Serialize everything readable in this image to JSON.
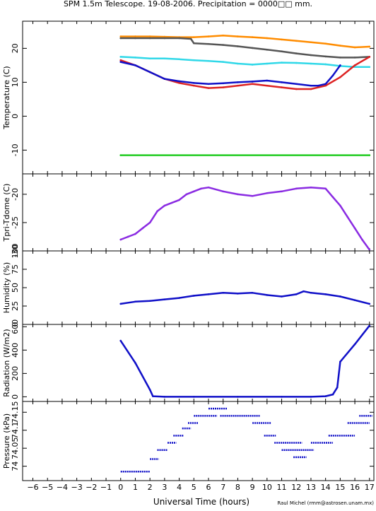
{
  "title": "SPM 1.5m Telescope. 19-08-2006. Precipitation = 0000□□ mm.",
  "credit": "Raul Michel (rmm@astrosen.unam.mx)",
  "xlabel": "Universal Time (hours)",
  "colors": {
    "orange": "#ff8c00",
    "dark_gray": "#555555",
    "cyan": "#30d8e8",
    "red": "#dd2222",
    "blue": "#1010c8",
    "green": "#22cc22",
    "purple": "#8a2be2"
  },
  "chart_data": [
    {
      "type": "scatter",
      "name": "temperature",
      "ylabel": "Temperature (C)",
      "xlim": [
        -6.7,
        17.3
      ],
      "ylim": [
        -17,
        28
      ],
      "xticks": [
        -6,
        -5,
        -4,
        -3,
        -2,
        -1,
        0,
        1,
        2,
        3,
        4,
        5,
        6,
        7,
        8,
        9,
        10,
        11,
        12,
        13,
        14,
        15,
        16,
        17
      ],
      "yticks": [
        -10,
        0,
        10,
        20
      ],
      "series": [
        {
          "color": "orange",
          "x": [
            0,
            1,
            2,
            3,
            4,
            5,
            6,
            7,
            8,
            9,
            10,
            11,
            12,
            13,
            14,
            15,
            16,
            17
          ],
          "y": [
            23.5,
            23.5,
            23.5,
            23.4,
            23.3,
            23.3,
            23.5,
            23.8,
            23.5,
            23.3,
            23.0,
            22.6,
            22.2,
            21.8,
            21.4,
            20.8,
            20.3,
            20.5
          ]
        },
        {
          "color": "dark_gray",
          "x": [
            0,
            1,
            2,
            3,
            4,
            4.8,
            5,
            6,
            7,
            8,
            9,
            10,
            11,
            12,
            13,
            14,
            15,
            16,
            17
          ],
          "y": [
            23.0,
            23.0,
            23.0,
            23.0,
            23.0,
            22.8,
            21.5,
            21.3,
            21.0,
            20.6,
            20.1,
            19.6,
            19.1,
            18.5,
            18.0,
            17.6,
            17.3,
            17.3,
            17.5
          ]
        },
        {
          "color": "cyan",
          "x": [
            0,
            1,
            2,
            3,
            4,
            5,
            6,
            7,
            8,
            9,
            10,
            11,
            12,
            13,
            14,
            15,
            16,
            17
          ],
          "y": [
            17.5,
            17.3,
            17.0,
            17.0,
            16.8,
            16.5,
            16.3,
            16.0,
            15.5,
            15.2,
            15.5,
            15.8,
            15.7,
            15.5,
            15.3,
            14.8,
            14.5,
            14.5
          ]
        },
        {
          "color": "red",
          "x": [
            0,
            1,
            2,
            3,
            4,
            5,
            6,
            7,
            8,
            9,
            10,
            11,
            12,
            13,
            14,
            15,
            16,
            17
          ],
          "y": [
            16.5,
            15.0,
            13.0,
            11.0,
            9.8,
            9.0,
            8.3,
            8.5,
            9.0,
            9.5,
            9.0,
            8.5,
            8.0,
            8.0,
            9.0,
            11.5,
            15.0,
            17.5
          ]
        },
        {
          "color": "blue",
          "x": [
            0,
            1,
            2,
            3,
            4,
            5,
            6,
            7,
            8,
            9,
            10,
            11,
            12,
            13,
            13.5,
            14,
            14.5,
            15
          ],
          "y": [
            16.0,
            15.0,
            13.0,
            11.0,
            10.3,
            9.8,
            9.5,
            9.7,
            10.0,
            10.2,
            10.5,
            10.0,
            9.5,
            9.0,
            9.0,
            9.5,
            12.0,
            15.0
          ]
        },
        {
          "color": "green",
          "x": [
            0,
            17
          ],
          "y": [
            -11.5,
            -11.5
          ]
        }
      ]
    },
    {
      "type": "scatter",
      "name": "tpri_tdome",
      "ylabel": "Tpri-Tdome (C)",
      "ylim": [
        -30,
        -16.4
      ],
      "yticks": [
        -30,
        -25,
        -20
      ],
      "series": [
        {
          "color": "purple",
          "x": [
            0,
            0.5,
            1,
            1.5,
            2,
            2.5,
            3,
            3.5,
            4,
            4.5,
            5,
            5.5,
            6,
            7,
            8,
            9,
            10,
            11,
            12,
            13,
            14,
            14.5,
            15,
            15.5,
            16,
            16.5,
            17
          ],
          "y": [
            -28.0,
            -27.5,
            -27.0,
            -26.0,
            -25.0,
            -23.0,
            -22.0,
            -21.5,
            -21.0,
            -20.0,
            -19.5,
            -19.0,
            -18.8,
            -19.5,
            -20.0,
            -20.3,
            -19.8,
            -19.5,
            -19.0,
            -18.8,
            -19.0,
            -20.5,
            -22.0,
            -24.0,
            -26.0,
            -28.0,
            -29.8
          ]
        }
      ]
    },
    {
      "type": "scatter",
      "name": "humidity",
      "ylabel": "Humidity (%)",
      "ylim": [
        0,
        100
      ],
      "yticks": [
        0,
        25,
        50,
        75,
        100
      ],
      "series": [
        {
          "color": "blue",
          "x": [
            0,
            1,
            2,
            3,
            4,
            5,
            6,
            7,
            8,
            9,
            10,
            11,
            12,
            12.5,
            13,
            14,
            15,
            16,
            17
          ],
          "y": [
            28,
            31,
            32,
            34,
            36,
            39,
            41,
            43,
            42,
            43,
            40,
            38,
            41,
            45,
            43,
            41,
            38,
            33,
            28
          ]
        }
      ]
    },
    {
      "type": "scatter",
      "name": "radiation",
      "ylabel": "Radiation (W/m2)",
      "ylim": [
        -40,
        620
      ],
      "yticks": [
        0,
        200,
        400,
        600
      ],
      "series": [
        {
          "color": "blue",
          "x": [
            0,
            1,
            2,
            2.2,
            3,
            5,
            8,
            11,
            13,
            14,
            14.5,
            14.8,
            15,
            16,
            17
          ],
          "y": [
            480,
            290,
            60,
            5,
            0,
            0,
            0,
            0,
            0,
            5,
            20,
            80,
            300,
            450,
            610
          ]
        }
      ]
    },
    {
      "type": "scatter",
      "name": "pressure",
      "ylabel": "Pressure (kPa)",
      "ylim": [
        73.96,
        74.18
      ],
      "yticks": [
        74,
        74.05,
        74.1,
        74.15
      ],
      "ytick_labels": [
        "74",
        "74.05",
        "74.1",
        "74.15"
      ],
      "series": [
        {
          "color": "blue",
          "segments": [
            {
              "x": [
                0,
                2
              ],
              "y": 73.985
            },
            {
              "x": [
                2,
                2.6
              ],
              "y": 74.02
            },
            {
              "x": [
                2.5,
                3.2
              ],
              "y": 74.045
            },
            {
              "x": [
                3.2,
                3.8
              ],
              "y": 74.065
            },
            {
              "x": [
                3.6,
                4.3
              ],
              "y": 74.085
            },
            {
              "x": [
                4.2,
                4.8
              ],
              "y": 74.105
            },
            {
              "x": [
                4.6,
                5.3
              ],
              "y": 74.12
            },
            {
              "x": [
                5.0,
                6.6
              ],
              "y": 74.14
            },
            {
              "x": [
                6.0,
                7.3
              ],
              "y": 74.16
            },
            {
              "x": [
                6.8,
                9.5
              ],
              "y": 74.14
            },
            {
              "x": [
                9.0,
                10.3
              ],
              "y": 74.12
            },
            {
              "x": [
                9.8,
                10.6
              ],
              "y": 74.085
            },
            {
              "x": [
                10.5,
                12.4
              ],
              "y": 74.065
            },
            {
              "x": [
                11.0,
                13.2
              ],
              "y": 74.045
            },
            {
              "x": [
                11.8,
                12.7
              ],
              "y": 74.025
            },
            {
              "x": [
                13.0,
                14.5
              ],
              "y": 74.065
            },
            {
              "x": [
                14.2,
                16.0
              ],
              "y": 74.085
            },
            {
              "x": [
                15.5,
                17.0
              ],
              "y": 74.12
            },
            {
              "x": [
                16.3,
                17.2
              ],
              "y": 74.14
            }
          ]
        }
      ]
    }
  ]
}
